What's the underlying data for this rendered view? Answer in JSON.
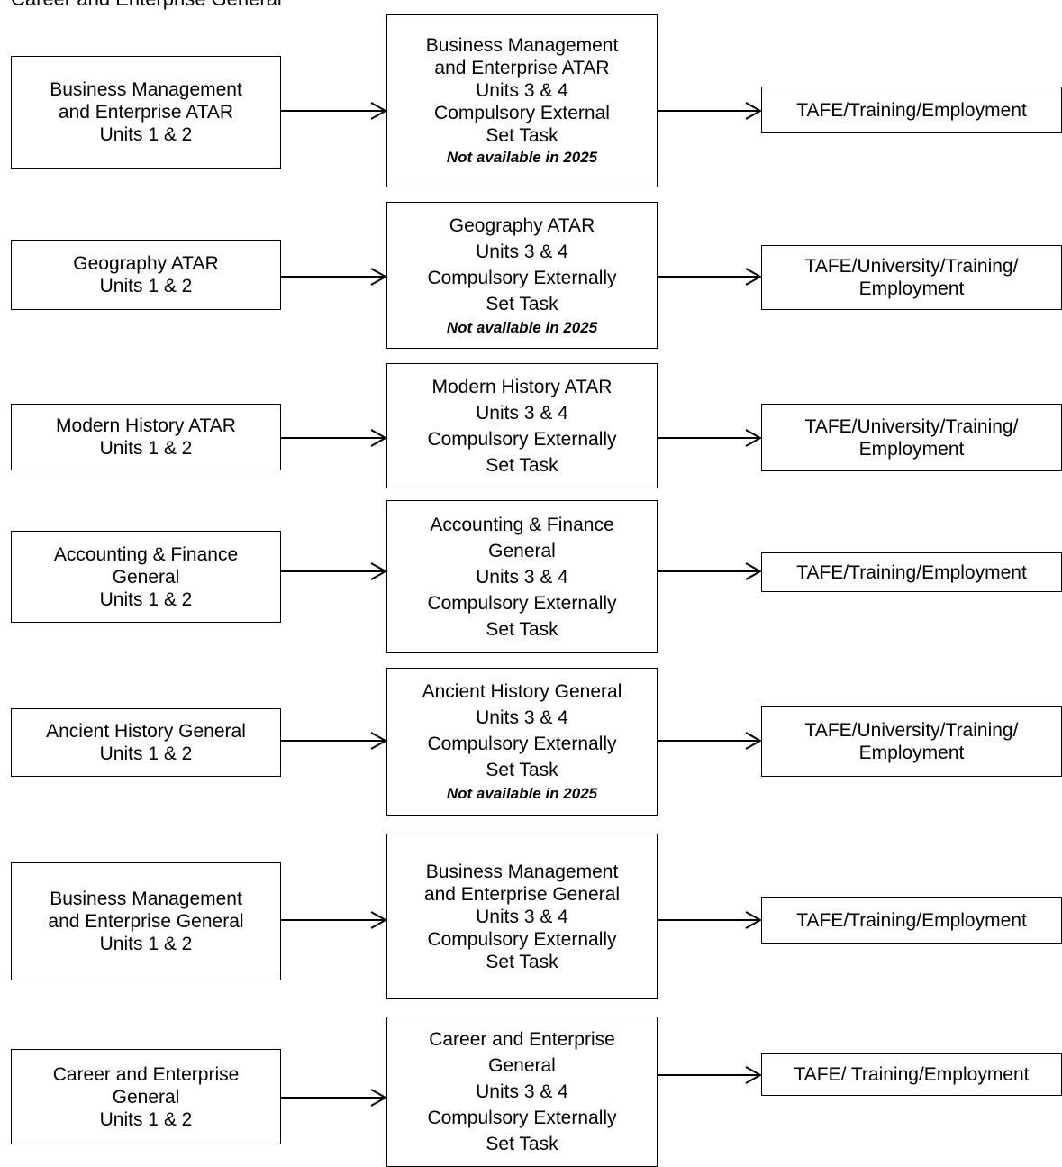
{
  "header": "Career and Enterprise General",
  "rows": [
    {
      "left": [
        "Business Management",
        "and Enterprise ATAR",
        "Units 1 & 2"
      ],
      "middle": [
        "Business Management",
        "and Enterprise ATAR",
        "Units 3 & 4",
        "Compulsory External",
        "Set Task"
      ],
      "middle_note": "Not available in 2025",
      "right": [
        "TAFE/Training/Employment"
      ]
    },
    {
      "left": [
        "Geography ATAR",
        "Units 1 & 2"
      ],
      "middle": [
        "Geography ATAR",
        "Units 3 & 4",
        "Compulsory Externally",
        "Set Task"
      ],
      "middle_note": "Not available in 2025",
      "right": [
        "TAFE/University/Training/",
        "Employment"
      ]
    },
    {
      "left": [
        "Modern History ATAR",
        "Units 1 & 2"
      ],
      "middle": [
        "Modern History ATAR",
        "Units 3 & 4",
        "Compulsory Externally",
        "Set Task"
      ],
      "middle_note": "",
      "right": [
        "TAFE/University/Training/",
        "Employment"
      ]
    },
    {
      "left": [
        "Accounting & Finance",
        "General",
        "Units 1 & 2"
      ],
      "middle": [
        "Accounting & Finance",
        "General",
        "Units 3 & 4",
        "Compulsory Externally",
        "Set Task"
      ],
      "middle_note": "",
      "right": [
        "TAFE/Training/Employment"
      ]
    },
    {
      "left": [
        "Ancient History General",
        "Units 1 & 2"
      ],
      "middle": [
        "Ancient History General",
        "Units 3 & 4",
        "Compulsory Externally",
        "Set Task"
      ],
      "middle_note": "Not available in 2025",
      "right": [
        "TAFE/University/Training/",
        "Employment"
      ]
    },
    {
      "left": [
        "Business Management",
        "and Enterprise General",
        "Units 1 & 2"
      ],
      "middle": [
        "Business Management",
        "and Enterprise General",
        "Units 3 & 4",
        "Compulsory Externally",
        "Set Task"
      ],
      "middle_note": "",
      "right": [
        "TAFE/Training/Employment"
      ]
    },
    {
      "left": [
        "Career and Enterprise",
        "General",
        "Units 1 & 2"
      ],
      "middle": [
        "Career and Enterprise",
        "General",
        "Units 3 & 4",
        "Compulsory Externally",
        "Set Task"
      ],
      "middle_note": "",
      "right": [
        "TAFE/ Training/Employment"
      ]
    }
  ]
}
